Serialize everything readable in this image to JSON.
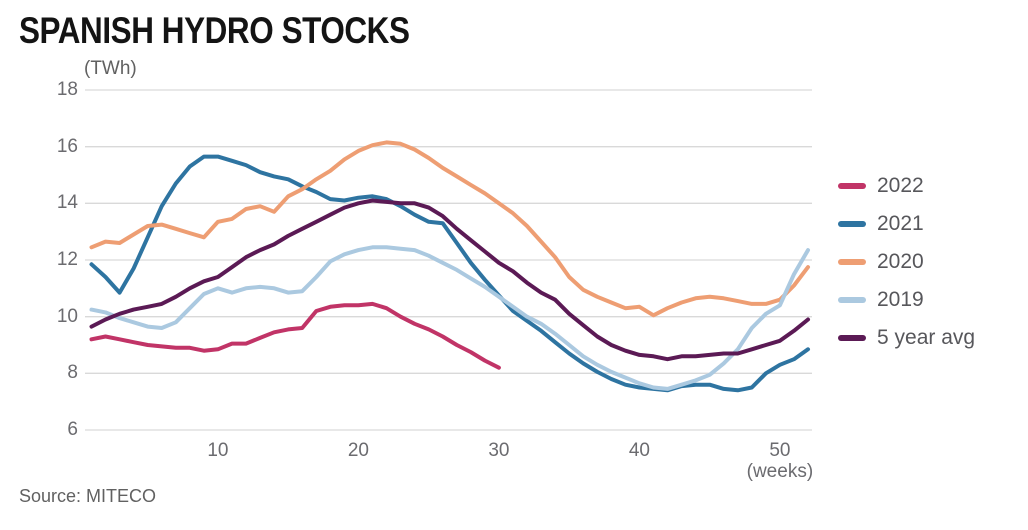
{
  "header": {
    "title": "SPANISH HYDRO STOCKS",
    "unit_label": "(TWh)"
  },
  "source": {
    "text": "Source: MITECO"
  },
  "colors": {
    "background": "#ffffff",
    "gridline": "#d9d9d9",
    "tick_text": "#6b6b6f",
    "legend_text": "#57575b",
    "title_text": "#141414",
    "muted_text": "#616161"
  },
  "chart_data": {
    "type": "line",
    "title": "SPANISH HYDRO STOCKS",
    "unit": "TWh",
    "ylabel": "(TWh)",
    "xlabel": "(weeks)",
    "x_unit": "week number",
    "xlim": [
      1,
      52
    ],
    "ylim": [
      6,
      18
    ],
    "x_ticks": [
      10,
      20,
      30,
      40,
      50
    ],
    "y_ticks": [
      18,
      16,
      14,
      12,
      10,
      8,
      6
    ],
    "grid": "horizontal-only",
    "legend_position": "right",
    "series": [
      {
        "name": "2022",
        "color": "#C13467",
        "x_start": 1,
        "values": [
          9.2,
          9.3,
          9.2,
          9.1,
          9.0,
          8.95,
          8.9,
          8.9,
          8.8,
          8.85,
          9.05,
          9.05,
          9.25,
          9.45,
          9.55,
          9.6,
          10.2,
          10.35,
          10.4,
          10.4,
          10.45,
          10.3,
          10.0,
          9.75,
          9.55,
          9.3,
          9.0,
          8.75,
          8.45,
          8.2
        ]
      },
      {
        "name": "2021",
        "color": "#2E74A1",
        "x_start": 1,
        "values": [
          11.85,
          11.4,
          10.85,
          11.7,
          12.8,
          13.9,
          14.7,
          15.3,
          15.65,
          15.65,
          15.5,
          15.35,
          15.1,
          14.95,
          14.85,
          14.6,
          14.4,
          14.15,
          14.1,
          14.2,
          14.25,
          14.15,
          13.9,
          13.6,
          13.35,
          13.3,
          12.6,
          11.9,
          11.3,
          10.75,
          10.2,
          9.85,
          9.5,
          9.1,
          8.7,
          8.35,
          8.05,
          7.8,
          7.6,
          7.5,
          7.45,
          7.4,
          7.55,
          7.6,
          7.6,
          7.45,
          7.4,
          7.5,
          8.0,
          8.3,
          8.5,
          8.85
        ]
      },
      {
        "name": "2020",
        "color": "#EE9E73",
        "x_start": 1,
        "values": [
          12.45,
          12.65,
          12.6,
          12.9,
          13.2,
          13.25,
          13.1,
          12.95,
          12.8,
          13.35,
          13.45,
          13.8,
          13.9,
          13.7,
          14.25,
          14.5,
          14.85,
          15.15,
          15.55,
          15.85,
          16.05,
          16.15,
          16.1,
          15.9,
          15.6,
          15.25,
          14.95,
          14.65,
          14.35,
          14.0,
          13.65,
          13.2,
          12.65,
          12.1,
          11.4,
          10.95,
          10.7,
          10.5,
          10.3,
          10.35,
          10.05,
          10.3,
          10.5,
          10.65,
          10.7,
          10.65,
          10.55,
          10.45,
          10.45,
          10.6,
          11.1,
          11.75
        ]
      },
      {
        "name": "2019",
        "color": "#ABC9E0",
        "x_start": 1,
        "values": [
          10.25,
          10.15,
          9.95,
          9.8,
          9.65,
          9.6,
          9.8,
          10.3,
          10.8,
          11.0,
          10.85,
          11.0,
          11.05,
          11.0,
          10.85,
          10.9,
          11.4,
          11.95,
          12.2,
          12.35,
          12.45,
          12.45,
          12.4,
          12.35,
          12.15,
          11.9,
          11.65,
          11.35,
          11.05,
          10.7,
          10.35,
          10.0,
          9.75,
          9.4,
          9.0,
          8.6,
          8.3,
          8.05,
          7.85,
          7.65,
          7.5,
          7.45,
          7.6,
          7.75,
          7.95,
          8.35,
          8.85,
          9.6,
          10.1,
          10.4,
          11.5,
          12.35
        ]
      },
      {
        "name": "5 year avg",
        "color": "#5B1A55",
        "x_start": 1,
        "values": [
          9.65,
          9.9,
          10.1,
          10.25,
          10.35,
          10.45,
          10.7,
          11.0,
          11.25,
          11.4,
          11.75,
          12.1,
          12.35,
          12.55,
          12.85,
          13.1,
          13.35,
          13.6,
          13.85,
          14.0,
          14.1,
          14.05,
          14.0,
          14.0,
          13.85,
          13.55,
          13.1,
          12.7,
          12.3,
          11.9,
          11.6,
          11.2,
          10.85,
          10.6,
          10.1,
          9.7,
          9.3,
          9.0,
          8.8,
          8.65,
          8.6,
          8.5,
          8.6,
          8.6,
          8.65,
          8.7,
          8.7,
          8.85,
          9.0,
          9.15,
          9.5,
          9.9
        ]
      }
    ]
  }
}
